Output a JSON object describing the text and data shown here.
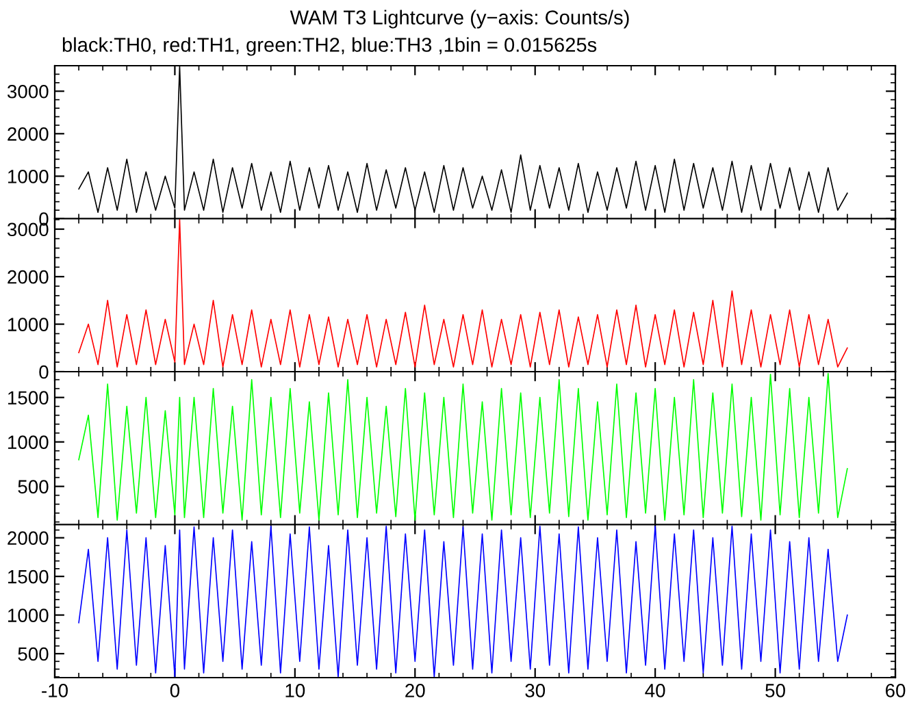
{
  "chart_data": [
    {
      "type": "line",
      "title": "WAM T3 Lightcurve (y−axis: Counts/s)",
      "subtitle": "black:TH0, red:TH1, green:TH2, blue:TH3 ,1bin = 0.015625s",
      "tick_labels": "y",
      "xlim": [
        -10,
        60
      ],
      "xticks": [
        -10,
        0,
        10,
        20,
        30,
        40,
        50,
        60
      ],
      "ylim": [
        0,
        3600
      ],
      "yticks": [
        0,
        1000,
        2000,
        3000
      ],
      "x": [
        -8,
        -7.2,
        -6.4,
        -5.6,
        -4.8,
        -4,
        -3.2,
        -2.4,
        -1.6,
        -0.8,
        0,
        0.4,
        0.8,
        1.6,
        2.4,
        3.2,
        4,
        4.8,
        5.6,
        6.4,
        7.2,
        8,
        8.8,
        9.6,
        10.4,
        11.2,
        12,
        12.8,
        13.6,
        14.4,
        15.2,
        16,
        16.8,
        17.6,
        18.4,
        19.2,
        20,
        20.8,
        21.6,
        22.4,
        23.2,
        24,
        24.8,
        25.6,
        26.4,
        27.2,
        28,
        28.8,
        29.6,
        30.4,
        31.2,
        32,
        32.8,
        33.6,
        34.4,
        35.2,
        36,
        36.8,
        37.6,
        38.4,
        39.2,
        40,
        40.8,
        41.6,
        42.4,
        43.2,
        44,
        44.8,
        45.6,
        46.4,
        47.2,
        48,
        48.8,
        49.6,
        50.4,
        51.2,
        52,
        52.8,
        53.6,
        54.4,
        55.2,
        56
      ],
      "series": [
        {
          "color": "#000000",
          "values": [
            700,
            1100,
            150,
            1200,
            200,
            1400,
            150,
            1100,
            200,
            1000,
            250,
            3580,
            200,
            1100,
            200,
            1400,
            150,
            1200,
            250,
            1300,
            200,
            1100,
            150,
            1350,
            200,
            1200,
            250,
            1250,
            200,
            1100,
            150,
            1300,
            200,
            1150,
            250,
            1200,
            200,
            1100,
            150,
            1250,
            200,
            1200,
            250,
            1000,
            200,
            1150,
            150,
            1500,
            200,
            1250,
            250,
            1200,
            200,
            1300,
            150,
            1100,
            200,
            1200,
            250,
            1350,
            200,
            1250,
            150,
            1400,
            200,
            1300,
            250,
            1200,
            200,
            1350,
            150,
            1250,
            200,
            1300,
            250,
            1200,
            200,
            1100,
            150,
            1200,
            200,
            600
          ]
        }
      ]
    },
    {
      "type": "line",
      "tick_labels": "y",
      "xlim": [
        -10,
        60
      ],
      "xticks": [
        -10,
        0,
        10,
        20,
        30,
        40,
        50,
        60
      ],
      "ylim": [
        0,
        3220
      ],
      "yticks": [
        0,
        1000,
        2000,
        3000
      ],
      "x": [
        -8,
        -7.2,
        -6.4,
        -5.6,
        -4.8,
        -4,
        -3.2,
        -2.4,
        -1.6,
        -0.8,
        0,
        0.4,
        0.8,
        1.6,
        2.4,
        3.2,
        4,
        4.8,
        5.6,
        6.4,
        7.2,
        8,
        8.8,
        9.6,
        10.4,
        11.2,
        12,
        12.8,
        13.6,
        14.4,
        15.2,
        16,
        16.8,
        17.6,
        18.4,
        19.2,
        20,
        20.8,
        21.6,
        22.4,
        23.2,
        24,
        24.8,
        25.6,
        26.4,
        27.2,
        28,
        28.8,
        29.6,
        30.4,
        31.2,
        32,
        32.8,
        33.6,
        34.4,
        35.2,
        36,
        36.8,
        37.6,
        38.4,
        39.2,
        40,
        40.8,
        41.6,
        42.4,
        43.2,
        44,
        44.8,
        45.6,
        46.4,
        47.2,
        48,
        48.8,
        49.6,
        50.4,
        51.2,
        52,
        52.8,
        53.6,
        54.4,
        55.2,
        56
      ],
      "series": [
        {
          "color": "#ff0000",
          "values": [
            400,
            1000,
            150,
            1500,
            100,
            1200,
            150,
            1300,
            150,
            1100,
            200,
            3200,
            150,
            1000,
            150,
            1500,
            100,
            1200,
            150,
            1300,
            100,
            1100,
            150,
            1300,
            100,
            1200,
            150,
            1150,
            100,
            1100,
            150,
            1200,
            100,
            1100,
            150,
            1250,
            100,
            1400,
            150,
            1100,
            100,
            1200,
            150,
            1300,
            100,
            1100,
            150,
            1200,
            100,
            1250,
            150,
            1300,
            100,
            1150,
            150,
            1200,
            100,
            1300,
            150,
            1400,
            100,
            1200,
            150,
            1300,
            100,
            1250,
            150,
            1500,
            100,
            1700,
            150,
            1300,
            100,
            1200,
            150,
            1300,
            100,
            1200,
            150,
            1100,
            100,
            500
          ]
        }
      ]
    },
    {
      "type": "line",
      "tick_labels": "y",
      "xlim": [
        -10,
        60
      ],
      "xticks": [
        -10,
        0,
        10,
        20,
        30,
        40,
        50,
        60
      ],
      "ylim": [
        70,
        1790
      ],
      "yticks": [
        500,
        1000,
        1500
      ],
      "x": [
        -8,
        -7.2,
        -6.4,
        -5.6,
        -4.8,
        -4,
        -3.2,
        -2.4,
        -1.6,
        -0.8,
        0,
        0.4,
        0.8,
        1.6,
        2.4,
        3.2,
        4,
        4.8,
        5.6,
        6.4,
        7.2,
        8,
        8.8,
        9.6,
        10.4,
        11.2,
        12,
        12.8,
        13.6,
        14.4,
        15.2,
        16,
        16.8,
        17.6,
        18.4,
        19.2,
        20,
        20.8,
        21.6,
        22.4,
        23.2,
        24,
        24.8,
        25.6,
        26.4,
        27.2,
        28,
        28.8,
        29.6,
        30.4,
        31.2,
        32,
        32.8,
        33.6,
        34.4,
        35.2,
        36,
        36.8,
        37.6,
        38.4,
        39.2,
        40,
        40.8,
        41.6,
        42.4,
        43.2,
        44,
        44.8,
        45.6,
        46.4,
        47.2,
        48,
        48.8,
        49.6,
        50.4,
        51.2,
        52,
        52.8,
        53.6,
        54.4,
        55.2,
        56
      ],
      "series": [
        {
          "color": "#00ff00",
          "values": [
            800,
            1300,
            150,
            1650,
            120,
            1400,
            200,
            1500,
            150,
            1350,
            180,
            1500,
            150,
            1500,
            150,
            1600,
            200,
            1400,
            120,
            1700,
            180,
            1500,
            150,
            1600,
            200,
            1450,
            120,
            1550,
            180,
            1700,
            150,
            1500,
            200,
            1400,
            160,
            1600,
            120,
            1550,
            180,
            1500,
            150,
            1650,
            200,
            1450,
            120,
            1600,
            180,
            1550,
            150,
            1500,
            200,
            1700,
            160,
            1600,
            120,
            1450,
            180,
            1650,
            150,
            1550,
            200,
            1600,
            120,
            1500,
            180,
            1700,
            150,
            1550,
            200,
            1650,
            160,
            1500,
            120,
            1760,
            180,
            1600,
            150,
            1500,
            200,
            1770,
            150,
            700
          ]
        }
      ]
    },
    {
      "type": "line",
      "xlim": [
        -10,
        60
      ],
      "xticks": [
        -10,
        0,
        10,
        20,
        30,
        40,
        50,
        60
      ],
      "ylim": [
        190,
        2170
      ],
      "yticks": [
        500,
        1000,
        1500,
        2000
      ],
      "x": [
        -8,
        -7.2,
        -6.4,
        -5.6,
        -4.8,
        -4,
        -3.2,
        -2.4,
        -1.6,
        -0.8,
        0,
        0.4,
        0.8,
        1.6,
        2.4,
        3.2,
        4,
        4.8,
        5.6,
        6.4,
        7.2,
        8,
        8.8,
        9.6,
        10.4,
        11.2,
        12,
        12.8,
        13.6,
        14.4,
        15.2,
        16,
        16.8,
        17.6,
        18.4,
        19.2,
        20,
        20.8,
        21.6,
        22.4,
        23.2,
        24,
        24.8,
        25.6,
        26.4,
        27.2,
        28,
        28.8,
        29.6,
        30.4,
        31.2,
        32,
        32.8,
        33.6,
        34.4,
        35.2,
        36,
        36.8,
        37.6,
        38.4,
        39.2,
        40,
        40.8,
        41.6,
        42.4,
        43.2,
        44,
        44.8,
        45.6,
        46.4,
        47.2,
        48,
        48.8,
        49.6,
        50.4,
        51.2,
        52,
        52.8,
        53.6,
        54.4,
        55.2,
        56
      ],
      "series": [
        {
          "color": "#0000ff",
          "values": [
            900,
            1850,
            400,
            2000,
            300,
            2100,
            350,
            2000,
            250,
            1900,
            200,
            2100,
            300,
            2140,
            250,
            2000,
            400,
            2100,
            300,
            1950,
            350,
            2150,
            250,
            2050,
            400,
            2140,
            300,
            1900,
            200,
            2100,
            350,
            2000,
            300,
            2150,
            250,
            2050,
            400,
            2100,
            200,
            1950,
            350,
            2140,
            300,
            2050,
            250,
            2100,
            400,
            2000,
            300,
            2150,
            350,
            2050,
            250,
            2140,
            300,
            2000,
            400,
            2100,
            250,
            1950,
            350,
            2150,
            300,
            2050,
            400,
            2100,
            250,
            2000,
            350,
            2150,
            300,
            2050,
            400,
            2100,
            250,
            1950,
            300,
            2000,
            400,
            1850,
            400,
            1000
          ]
        }
      ]
    }
  ]
}
